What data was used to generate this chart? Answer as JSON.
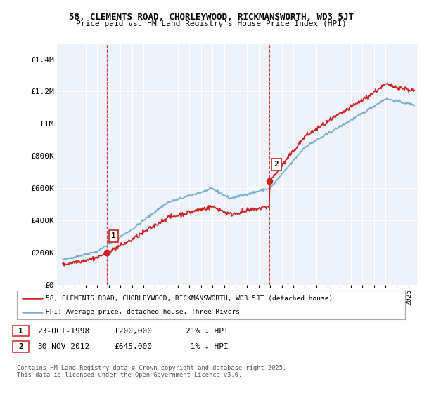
{
  "title1": "58, CLEMENTS ROAD, CHORLEYWOOD, RICKMANSWORTH, WD3 5JT",
  "title2": "Price paid vs. HM Land Registry's House Price Index (HPI)",
  "ylim": [
    0,
    1500000
  ],
  "yticks": [
    0,
    200000,
    400000,
    600000,
    800000,
    1000000,
    1200000,
    1400000
  ],
  "ytick_labels": [
    "£0",
    "£200K",
    "£400K",
    "£600K",
    "£800K",
    "£1M",
    "£1.2M",
    "£1.4M"
  ],
  "background_color": "#ffffff",
  "plot_bg_color": "#eef2fb",
  "grid_color": "#ffffff",
  "hpi_color": "#7aadd4",
  "price_color": "#cc2222",
  "marker_dv1_date": 1998.81,
  "marker_dv1_price": 200000,
  "marker_dv2_date": 2012.92,
  "marker_dv2_price": 645000,
  "vline_color": "#cc2222",
  "legend_line1": "58, CLEMENTS ROAD, CHORLEYWOOD, RICKMANSWORTH, WD3 5JT (detached house)",
  "legend_line2": "HPI: Average price, detached house, Three Rivers",
  "footer": "Contains HM Land Registry data © Crown copyright and database right 2025.\nThis data is licensed under the Open Government Licence v3.0.",
  "xmin": 1994.5,
  "xmax": 2025.8
}
